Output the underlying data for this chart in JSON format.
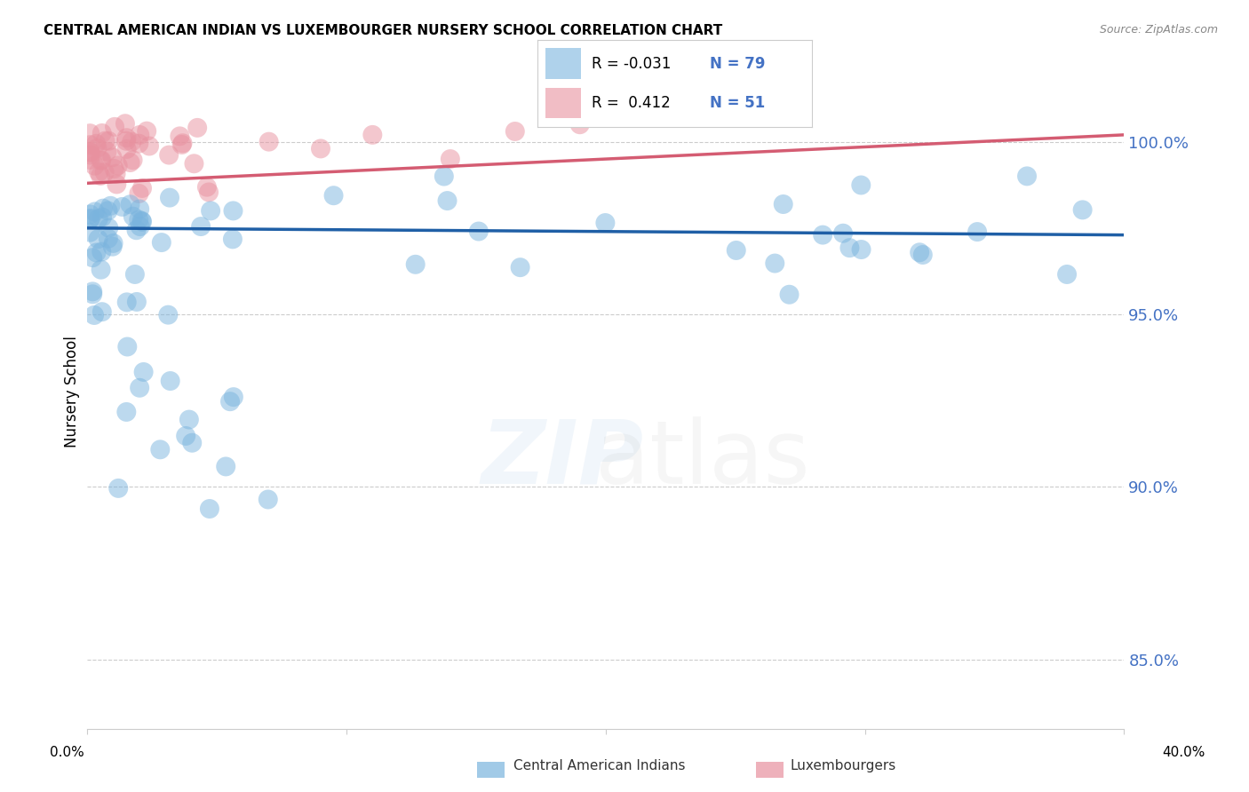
{
  "title": "CENTRAL AMERICAN INDIAN VS LUXEMBOURGER NURSERY SCHOOL CORRELATION CHART",
  "source": "Source: ZipAtlas.com",
  "ylabel": "Nursery School",
  "xlim": [
    0.0,
    40.0
  ],
  "ylim": [
    83.0,
    102.5
  ],
  "yticks": [
    85.0,
    90.0,
    95.0,
    100.0
  ],
  "ytick_labels": [
    "85.0%",
    "90.0%",
    "95.0%",
    "100.0%"
  ],
  "blue_R": -0.031,
  "blue_N": 79,
  "pink_R": 0.412,
  "pink_N": 51,
  "blue_color": "#7ab4de",
  "pink_color": "#e8919f",
  "blue_line_color": "#1f5fa6",
  "pink_line_color": "#d45c72",
  "blue_line_y0": 97.5,
  "blue_line_y1": 97.3,
  "pink_line_y0": 98.8,
  "pink_line_y1": 100.2
}
